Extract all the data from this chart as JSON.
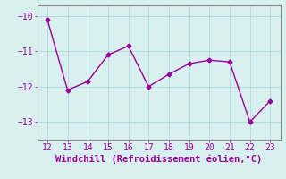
{
  "x": [
    12,
    13,
    14,
    15,
    16,
    17,
    18,
    19,
    20,
    21,
    22,
    23
  ],
  "y": [
    -10.1,
    -12.1,
    -11.85,
    -11.1,
    -10.85,
    -12.0,
    -11.65,
    -11.35,
    -11.25,
    -11.3,
    -13.0,
    -12.4
  ],
  "line_color": "#990099",
  "marker": "D",
  "marker_size": 2.5,
  "bg_color": "#d8f0f0",
  "grid_color": "#b0d8d8",
  "xlabel": "Windchill (Refroidissement éolien,°C)",
  "xlabel_color": "#990099",
  "tick_color": "#990099",
  "xlim": [
    11.5,
    23.5
  ],
  "ylim": [
    -13.5,
    -9.7
  ],
  "yticks": [
    -13,
    -12,
    -11,
    -10
  ],
  "xticks": [
    12,
    13,
    14,
    15,
    16,
    17,
    18,
    19,
    20,
    21,
    22,
    23
  ],
  "spine_color": "#888888",
  "font_size": 7,
  "xlabel_fontsize": 7.5,
  "line_width": 1.0
}
